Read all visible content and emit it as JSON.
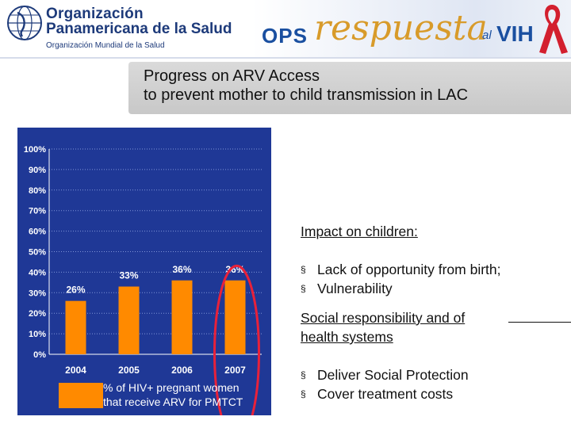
{
  "header": {
    "org_line1": "Organización",
    "org_line2": "Panamericana de la Salud",
    "org_sub": "Organización Mundial de la Salud",
    "ops": "OPS",
    "respuesta": "respuesta",
    "al": "al",
    "vih": "VIH"
  },
  "title": {
    "line1": "Progress on ARV Access",
    "line2": "to prevent mother to child transmission in LAC"
  },
  "chart_data": {
    "type": "bar",
    "categories": [
      "2004",
      "2005",
      "2006",
      "2007"
    ],
    "values": [
      26,
      33,
      36,
      36
    ],
    "value_labels": [
      "26%",
      "33%",
      "36%",
      "36%"
    ],
    "ylim": [
      0,
      100
    ],
    "yticks": [
      "0%",
      "10%",
      "20%",
      "30%",
      "40%",
      "50%",
      "60%",
      "70%",
      "80%",
      "90%",
      "100%"
    ],
    "grid": true,
    "legend": [
      "% of HIV+ pregnant women",
      "that receive ARV for PMTCT"
    ],
    "highlight_category": "2007",
    "colors": {
      "bar": "#ff8a00",
      "background": "#1f3896",
      "highlight": "#e8213a"
    }
  },
  "right_panel": {
    "impact_heading": "Impact on children:",
    "impact_items": [
      "Lack of opportunity from birth;",
      "Vulnerability"
    ],
    "social_line1": "Social responsibility and of",
    "social_line2": "health systems",
    "social_items": [
      "Deliver Social Protection",
      "Cover treatment costs"
    ],
    "bullet": "§"
  }
}
